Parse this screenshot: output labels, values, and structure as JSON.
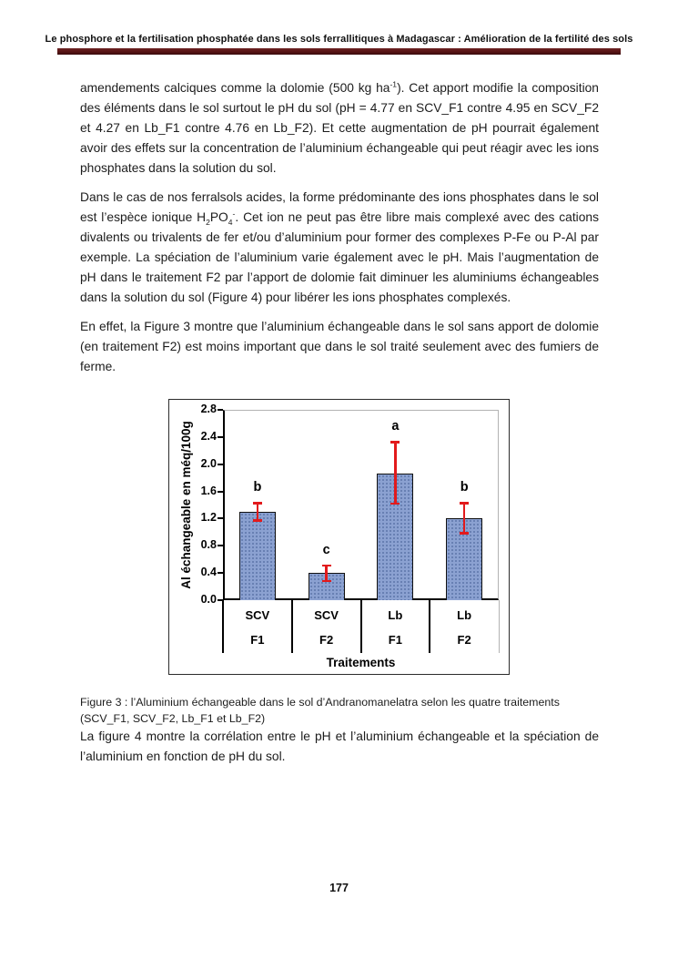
{
  "header": {
    "title": "Le phosphore et la fertilisation phosphatée dans les sols ferrallitiques à Madagascar : Amélioration de la fertilité des sols"
  },
  "paragraphs": {
    "p1": {
      "a": "amendements calciques comme la dolomie (500 kg ha",
      "sup": "-1",
      "b": "). Cet apport modifie la composition des éléments dans le sol surtout le pH du sol (pH = 4.77 en SCV_F1 contre 4.95 en SCV_F2 et 4.27 en Lb_F1 contre 4.76 en Lb_F2). Et cette augmentation de pH pourrait également avoir des effets sur la concentration de l’aluminium échangeable qui peut réagir avec les ions phosphates dans la solution du sol."
    },
    "p2": {
      "a": "Dans le cas de nos ferralsols acides, la forme prédominante des ions phosphates dans le sol est l’espèce ionique H",
      "sub1": "2",
      "mid": "PO",
      "sub2": "4",
      "sup": "-",
      "b": ". Cet ion ne peut pas être libre mais complexé avec des cations divalents ou trivalents de fer et/ou d’aluminium pour former des complexes P-Fe ou P-Al par exemple. La spéciation de l’aluminium varie également avec le pH. Mais l’augmentation de pH dans le traitement F2 par l’apport de dolomie fait diminuer les aluminiums échangeables dans la solution du sol (Figure  4) pour libérer les ions phosphates complexés."
    },
    "p3": "En effet, la Figure 3 montre que l’aluminium échangeable dans le sol sans apport de dolomie (en traitement F2) est moins important que dans le sol traité seulement avec des fumiers de ferme.",
    "p4": "La figure 4 montre la corrélation entre le pH et l’aluminium échangeable et la spéciation de l’aluminium en fonction de pH du sol."
  },
  "caption": {
    "line1": "Figure 3 : l’Aluminium échangeable dans le sol d’Andranomanelatra selon les quatre traitements",
    "line2": "(SCV_F1, SCV_F2, Lb_F1 et Lb_F2)"
  },
  "footer": {
    "page_number": "177"
  },
  "chart_data": {
    "type": "bar",
    "title": "",
    "categories": [
      [
        "SCV",
        "F1"
      ],
      [
        "SCV",
        "F2"
      ],
      [
        "Lb",
        "F1"
      ],
      [
        "Lb",
        "F2"
      ]
    ],
    "values": [
      1.3,
      0.4,
      1.86,
      1.2
    ],
    "error_low": [
      1.17,
      0.28,
      1.42,
      0.98
    ],
    "error_high": [
      1.43,
      0.51,
      2.33,
      1.43
    ],
    "significance_letters": [
      "b",
      "c",
      "a",
      "b"
    ],
    "ylabel": "Al échangeable en méq/100g",
    "xlabel": "Traitements",
    "ylim": [
      0,
      2.8
    ],
    "yticks": [
      "0.0",
      "0.4",
      "0.8",
      "1.2",
      "1.6",
      "2.0",
      "2.4",
      "2.8"
    ],
    "grid": false,
    "legend": "none",
    "bar_color": "#8ba1d1",
    "bar_border_color": "#111111",
    "error_color": "#e21a1c"
  }
}
